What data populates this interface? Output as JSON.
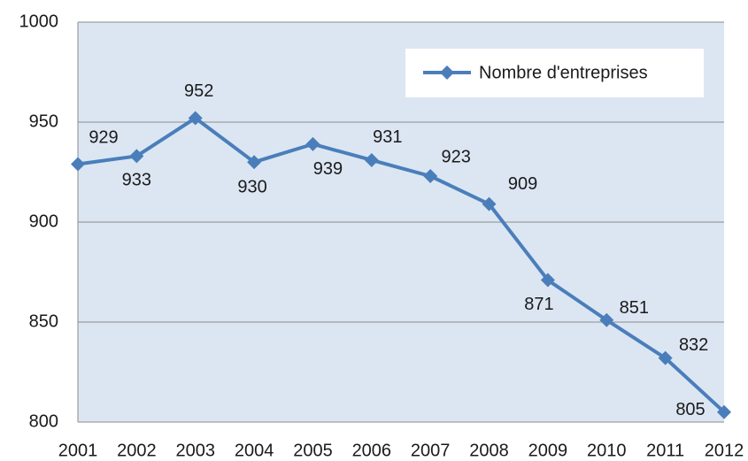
{
  "chart_data": {
    "type": "line",
    "categories": [
      "2001",
      "2002",
      "2003",
      "2004",
      "2005",
      "2006",
      "2007",
      "2008",
      "2009",
      "2010",
      "2011",
      "2012"
    ],
    "series": [
      {
        "name": "Nombre d'entreprises",
        "color": "#4a7ebb",
        "values": [
          929,
          933,
          952,
          930,
          939,
          931,
          923,
          909,
          871,
          851,
          832,
          805
        ]
      }
    ],
    "ylim": [
      800,
      1000
    ],
    "yticks": [
      800,
      850,
      900,
      950,
      1000
    ],
    "grid": true,
    "legend": "upper right"
  }
}
